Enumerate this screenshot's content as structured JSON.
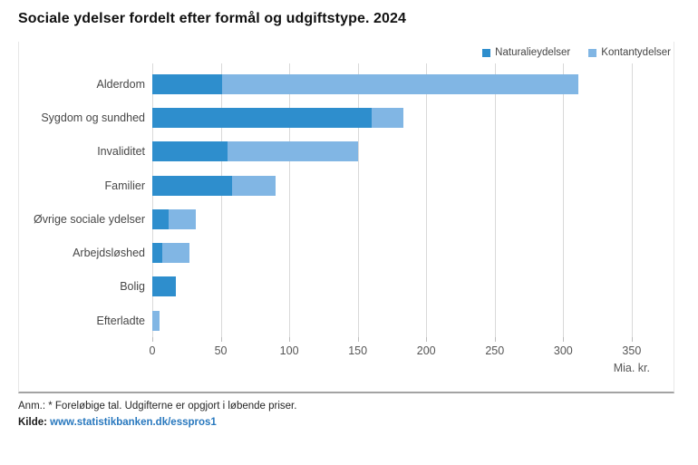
{
  "title": "Sociale ydelser fordelt efter formål og udgiftstype. 2024",
  "legend": [
    {
      "label": "Naturalieydelser",
      "color": "#2E8ECD"
    },
    {
      "label": "Kontantydelser",
      "color": "#81B6E4"
    }
  ],
  "chart_data": {
    "type": "bar",
    "orientation": "horizontal",
    "stacked": true,
    "title": "Sociale ydelser fordelt efter formål og udgiftstype. 2024",
    "categories": [
      "Alderdom",
      "Sygdom og sundhed",
      "Invaliditet",
      "Familier",
      "Øvrige sociale ydelser",
      "Arbejdsløshed",
      "Bolig",
      "Efterladte"
    ],
    "series": [
      {
        "name": "Naturalieydelser",
        "color": "#2E8ECD",
        "values": [
          51,
          160,
          55,
          58,
          12,
          7,
          17,
          0
        ]
      },
      {
        "name": "Kontantydelser",
        "color": "#81B6E4",
        "values": [
          260,
          23,
          95,
          32,
          20,
          20,
          0,
          5.5
        ]
      }
    ],
    "totals": [
      311,
      183,
      150,
      90,
      32,
      27,
      17,
      5.5
    ],
    "xlabel": "Mia. kr.",
    "xlim": [
      0,
      380
    ],
    "x_ticks": [
      0,
      50,
      100,
      150,
      200,
      250,
      300,
      350
    ],
    "grid": "vertical",
    "legend_position": "top-right"
  },
  "x_axis": {
    "tick_labels": [
      "0",
      "50",
      "100",
      "150",
      "200",
      "250",
      "300",
      "350"
    ],
    "unit_label": "Mia. kr."
  },
  "footer": {
    "note": "Anm.: * Foreløbige tal. Udgifterne er opgjort i løbende priser.",
    "source_label": "Kilde:",
    "source_link": "www.statistikbanken.dk/esspros1"
  },
  "colors": {
    "naturalieydelser": "#2E8ECD",
    "kontantydelser": "#81B6E4",
    "gridline": "#d9d9d9",
    "frame_border": "#e7e7e7",
    "bottom_rule": "#a3a3a3",
    "link": "#2878be"
  }
}
